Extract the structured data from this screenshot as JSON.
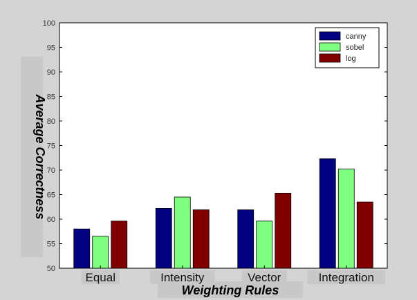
{
  "chart_data": {
    "type": "bar",
    "xlabel": "Weighting Rules",
    "ylabel": "Average Correctness",
    "ylim": [
      50,
      100
    ],
    "yticks": [
      50,
      55,
      60,
      65,
      70,
      75,
      80,
      85,
      90,
      95,
      100
    ],
    "categories": [
      "Equal",
      "Intensity",
      "Vector",
      "Integration"
    ],
    "series": [
      {
        "name": "canny",
        "color": "#000080",
        "values": [
          58.0,
          62.2,
          61.9,
          72.3
        ]
      },
      {
        "name": "sobel",
        "color": "#80ff80",
        "values": [
          56.5,
          64.5,
          59.6,
          70.2
        ]
      },
      {
        "name": "log",
        "color": "#800000",
        "values": [
          59.6,
          61.9,
          65.3,
          63.5
        ]
      }
    ],
    "legend_position": "top-right",
    "grid": false
  },
  "colors": {
    "figure_background": "#d4d4d4",
    "axes_background": "#ffffff",
    "label_box_background": "#c8c8c8"
  }
}
